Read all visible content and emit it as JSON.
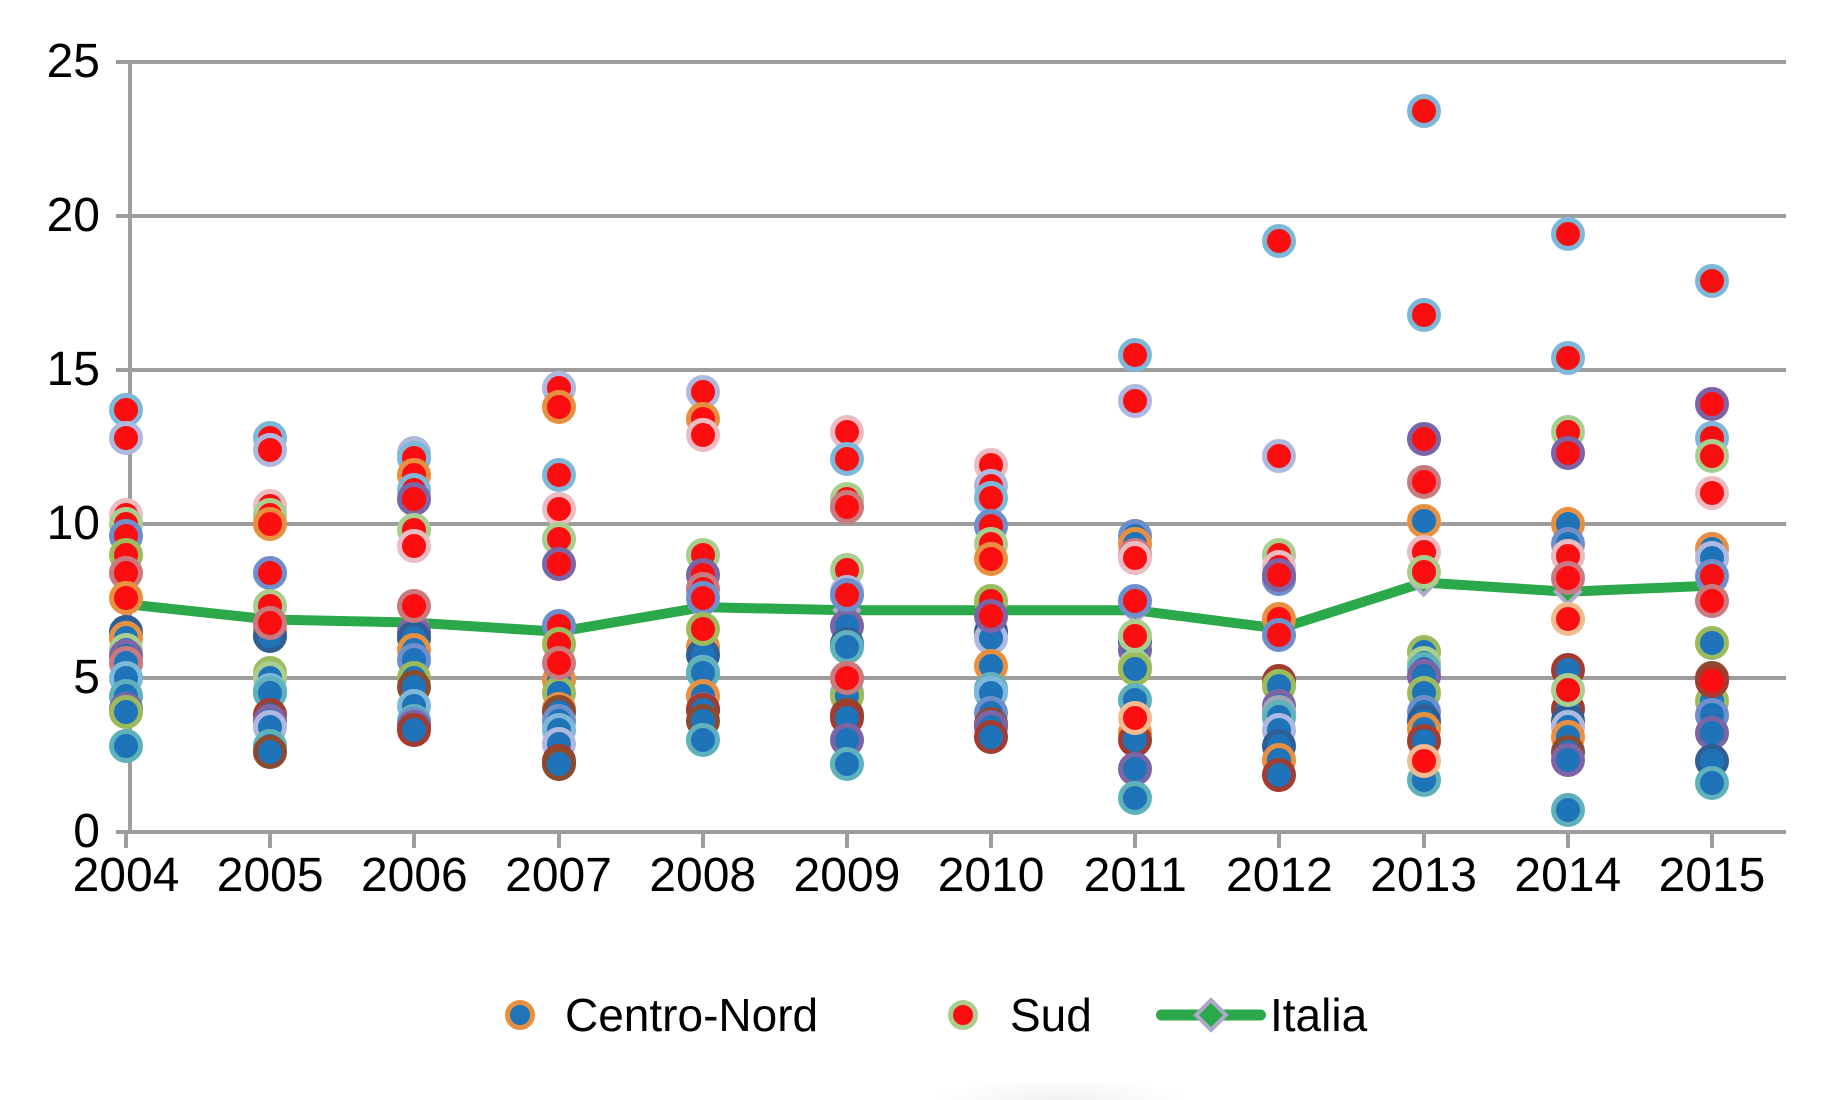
{
  "legend": {
    "centro_nord": "Centro-Nord",
    "sud": "Sud",
    "italia": "Italia"
  },
  "axes": {
    "y_labels": [
      "0",
      "5",
      "10",
      "15",
      "20",
      "25"
    ],
    "x_labels": [
      "2004",
      "2005",
      "2006",
      "2007",
      "2008",
      "2009",
      "2010",
      "2011",
      "2012",
      "2013",
      "2014",
      "2015"
    ]
  },
  "colors": {
    "centro_nord_fill": "#1E73B9",
    "sud_fill": "#FB0D10",
    "italia_line": "#2BA84A",
    "diamond_border": "#B0A8CC",
    "gridline": "#9D9D9D",
    "border_palette": {
      "orange": "#E89040",
      "lightblue": "#7EB8D9",
      "lavender": "#AFB9DF",
      "green": "#A9CE90",
      "pink": "#ECBCC3",
      "rose": "#C97A7E",
      "purple": "#7C64A5",
      "blue": "#6E8FCB",
      "navy": "#2F5E95",
      "teal": "#5FB2BC",
      "olive": "#9CBB5D",
      "darkred": "#A23B30",
      "brown": "#8C4B2F",
      "peach": "#F4BA90",
      "gray": "#9FA8B5"
    }
  },
  "chart_data": {
    "type": "scatter",
    "title": "",
    "xlabel": "",
    "ylabel": "",
    "ylim": [
      0,
      25
    ],
    "yticks": [
      0,
      5,
      10,
      15,
      20,
      25
    ],
    "grid": true,
    "legend_position": "bottom",
    "categories": [
      2004,
      2005,
      2006,
      2007,
      2008,
      2009,
      2010,
      2011,
      2012,
      2013,
      2014,
      2015
    ],
    "series": [
      {
        "name": "Centro-Nord",
        "marker": "circle",
        "points_by_year": [
          [
            [
              6.5,
              "navy"
            ],
            [
              6.3,
              "orange"
            ],
            [
              5.9,
              "green"
            ],
            [
              5.7,
              "purple"
            ],
            [
              5.5,
              "rose"
            ],
            [
              5.0,
              "lightblue"
            ],
            [
              4.4,
              "teal"
            ],
            [
              4.0,
              "purple"
            ],
            [
              3.9,
              "olive"
            ],
            [
              2.8,
              "teal"
            ]
          ],
          [
            [
              6.55,
              "orange"
            ],
            [
              6.35,
              "navy"
            ],
            [
              5.15,
              "olive"
            ],
            [
              5.0,
              "green"
            ],
            [
              4.6,
              "lightblue"
            ],
            [
              4.5,
              "teal"
            ],
            [
              3.8,
              "darkred"
            ],
            [
              3.6,
              "purple"
            ],
            [
              3.4,
              "lavender"
            ],
            [
              2.8,
              "teal"
            ],
            [
              2.6,
              "brown"
            ]
          ],
          [
            [
              6.5,
              "purple"
            ],
            [
              6.3,
              "navy"
            ],
            [
              5.9,
              "orange"
            ],
            [
              5.6,
              "blue"
            ],
            [
              5.0,
              "olive"
            ],
            [
              4.7,
              "brown"
            ],
            [
              4.1,
              "lightblue"
            ],
            [
              3.6,
              "teal"
            ],
            [
              3.5,
              "blue"
            ],
            [
              3.4,
              "purple"
            ],
            [
              3.3,
              "darkred"
            ]
          ],
          [
            [
              4.95,
              "orange"
            ],
            [
              4.5,
              "olive"
            ],
            [
              4.0,
              "orange"
            ],
            [
              3.9,
              "brown"
            ],
            [
              3.6,
              "blue"
            ],
            [
              3.3,
              "lightblue"
            ],
            [
              2.85,
              "lavender"
            ],
            [
              2.3,
              "darkred"
            ],
            [
              2.2,
              "brown"
            ]
          ],
          [
            [
              6.0,
              "orange"
            ],
            [
              5.75,
              "navy"
            ],
            [
              5.2,
              "lightblue"
            ],
            [
              5.15,
              "teal"
            ],
            [
              4.4,
              "orange"
            ],
            [
              4.0,
              "purple"
            ],
            [
              3.95,
              "darkred"
            ],
            [
              3.6,
              "brown"
            ],
            [
              3.0,
              "teal"
            ]
          ],
          [
            [
              6.7,
              "purple"
            ],
            [
              6.1,
              "navy"
            ],
            [
              6.0,
              "teal"
            ],
            [
              5.0,
              "orange"
            ],
            [
              4.5,
              "lightblue"
            ],
            [
              4.4,
              "olive"
            ],
            [
              3.8,
              "brown"
            ],
            [
              3.7,
              "darkred"
            ],
            [
              3.0,
              "purple"
            ],
            [
              2.2,
              "teal"
            ]
          ],
          [
            [
              6.5,
              "navy"
            ],
            [
              6.3,
              "lavender"
            ],
            [
              5.4,
              "orange"
            ],
            [
              4.65,
              "teal"
            ],
            [
              4.5,
              "lightblue"
            ],
            [
              3.85,
              "blue"
            ],
            [
              3.5,
              "brown"
            ],
            [
              3.4,
              "purple"
            ],
            [
              3.1,
              "darkred"
            ]
          ],
          [
            [
              9.6,
              "blue"
            ],
            [
              9.35,
              "orange"
            ],
            [
              6.2,
              "navy"
            ],
            [
              5.9,
              "purple"
            ],
            [
              5.4,
              "green"
            ],
            [
              5.3,
              "olive"
            ],
            [
              4.3,
              "teal"
            ],
            [
              3.2,
              "orange"
            ],
            [
              3.0,
              "darkred"
            ],
            [
              2.05,
              "purple"
            ],
            [
              1.1,
              "teal"
            ]
          ],
          [
            [
              8.2,
              "blue"
            ],
            [
              4.9,
              "darkred"
            ],
            [
              4.75,
              "olive"
            ],
            [
              4.1,
              "purple"
            ],
            [
              3.9,
              "gray"
            ],
            [
              3.75,
              "teal"
            ],
            [
              3.3,
              "lavender"
            ],
            [
              2.8,
              "navy"
            ],
            [
              2.35,
              "orange"
            ],
            [
              1.85,
              "darkred"
            ]
          ],
          [
            [
              10.1,
              "orange"
            ],
            [
              5.85,
              "olive"
            ],
            [
              5.5,
              "green"
            ],
            [
              5.3,
              "teal"
            ],
            [
              5.05,
              "purple"
            ],
            [
              4.5,
              "olive"
            ],
            [
              3.9,
              "blue"
            ],
            [
              3.6,
              "navy"
            ],
            [
              3.35,
              "orange"
            ],
            [
              2.95,
              "darkred"
            ],
            [
              1.7,
              "teal"
            ]
          ],
          [
            [
              10.0,
              "orange"
            ],
            [
              9.35,
              "blue"
            ],
            [
              5.25,
              "darkred"
            ],
            [
              4.0,
              "darkred"
            ],
            [
              3.6,
              "navy"
            ],
            [
              3.4,
              "lavender"
            ],
            [
              3.1,
              "orange"
            ],
            [
              2.6,
              "brown"
            ],
            [
              2.35,
              "purple"
            ],
            [
              0.7,
              "teal"
            ]
          ],
          [
            [
              9.2,
              "orange"
            ],
            [
              8.9,
              "lavender"
            ],
            [
              6.15,
              "olive"
            ],
            [
              5.0,
              "brown"
            ],
            [
              4.25,
              "olive"
            ],
            [
              3.8,
              "blue"
            ],
            [
              3.2,
              "purple"
            ],
            [
              2.3,
              "navy"
            ],
            [
              1.6,
              "teal"
            ]
          ]
        ]
      },
      {
        "name": "Sud",
        "marker": "circle",
        "points_by_year": [
          [
            [
              13.7,
              "lightblue"
            ],
            [
              12.8,
              "lavender"
            ],
            [
              10.3,
              "pink"
            ],
            [
              10.0,
              "green"
            ],
            [
              9.6,
              "blue"
            ],
            [
              9.0,
              "olive"
            ],
            [
              8.4,
              "rose"
            ],
            [
              7.6,
              "orange"
            ]
          ],
          [
            [
              12.8,
              "lightblue"
            ],
            [
              12.4,
              "lavender"
            ],
            [
              10.6,
              "pink"
            ],
            [
              10.3,
              "green"
            ],
            [
              10.0,
              "orange"
            ],
            [
              8.4,
              "blue"
            ],
            [
              7.35,
              "green"
            ],
            [
              6.8,
              "rose"
            ]
          ],
          [
            [
              12.3,
              "lavender"
            ],
            [
              12.15,
              "lightblue"
            ],
            [
              11.6,
              "orange"
            ],
            [
              11.1,
              "lightblue"
            ],
            [
              10.8,
              "purple"
            ],
            [
              9.8,
              "green"
            ],
            [
              9.3,
              "pink"
            ],
            [
              7.35,
              "rose"
            ]
          ],
          [
            [
              14.4,
              "lavender"
            ],
            [
              13.8,
              "orange"
            ],
            [
              11.6,
              "lightblue"
            ],
            [
              10.5,
              "pink"
            ],
            [
              9.5,
              "green"
            ],
            [
              8.7,
              "purple"
            ],
            [
              6.7,
              "blue"
            ],
            [
              6.1,
              "olive"
            ],
            [
              5.5,
              "rose"
            ]
          ],
          [
            [
              14.3,
              "lavender"
            ],
            [
              13.4,
              "orange"
            ],
            [
              12.9,
              "pink"
            ],
            [
              9.0,
              "green"
            ],
            [
              8.35,
              "purple"
            ],
            [
              7.9,
              "rose"
            ],
            [
              7.6,
              "blue"
            ],
            [
              6.6,
              "olive"
            ]
          ],
          [
            [
              13.0,
              "pink"
            ],
            [
              12.1,
              "lightblue"
            ],
            [
              10.8,
              "green"
            ],
            [
              10.55,
              "rose"
            ],
            [
              8.5,
              "green"
            ],
            [
              7.8,
              "lavender"
            ],
            [
              7.7,
              "blue"
            ],
            [
              5.0,
              "rose"
            ]
          ],
          [
            [
              11.9,
              "pink"
            ],
            [
              11.25,
              "lavender"
            ],
            [
              10.85,
              "lightblue"
            ],
            [
              9.95,
              "blue"
            ],
            [
              9.35,
              "green"
            ],
            [
              8.85,
              "orange"
            ],
            [
              7.5,
              "olive"
            ],
            [
              7.0,
              "purple"
            ]
          ],
          [
            [
              15.5,
              "lightblue"
            ],
            [
              14.0,
              "lavender"
            ],
            [
              9.0,
              "rose"
            ],
            [
              8.9,
              "pink"
            ],
            [
              7.5,
              "blue"
            ],
            [
              6.35,
              "green"
            ],
            [
              3.7,
              "peach"
            ]
          ],
          [
            [
              19.2,
              "lightblue"
            ],
            [
              12.2,
              "lavender"
            ],
            [
              9.0,
              "green"
            ],
            [
              8.6,
              "pink"
            ],
            [
              8.35,
              "purple"
            ],
            [
              6.9,
              "orange"
            ],
            [
              6.4,
              "blue"
            ]
          ],
          [
            [
              23.4,
              "lightblue"
            ],
            [
              16.8,
              "lightblue"
            ],
            [
              12.75,
              "purple"
            ],
            [
              11.35,
              "rose"
            ],
            [
              9.1,
              "pink"
            ],
            [
              8.45,
              "green"
            ],
            [
              2.3,
              "peach"
            ]
          ],
          [
            [
              19.4,
              "lightblue"
            ],
            [
              15.4,
              "lightblue"
            ],
            [
              13.0,
              "green"
            ],
            [
              12.3,
              "purple"
            ],
            [
              8.95,
              "pink"
            ],
            [
              8.25,
              "rose"
            ],
            [
              6.9,
              "peach"
            ],
            [
              4.6,
              "green"
            ]
          ],
          [
            [
              17.9,
              "lightblue"
            ],
            [
              13.9,
              "purple"
            ],
            [
              12.8,
              "lightblue"
            ],
            [
              12.2,
              "green"
            ],
            [
              11.0,
              "pink"
            ],
            [
              8.3,
              "blue"
            ],
            [
              7.5,
              "rose"
            ],
            [
              4.9,
              "darkred"
            ]
          ]
        ]
      },
      {
        "name": "Italia",
        "marker": "diamond-line",
        "values": [
          7.4,
          6.9,
          6.8,
          6.5,
          7.3,
          7.2,
          7.2,
          7.2,
          6.6,
          8.1,
          7.8,
          8.0
        ]
      }
    ]
  }
}
